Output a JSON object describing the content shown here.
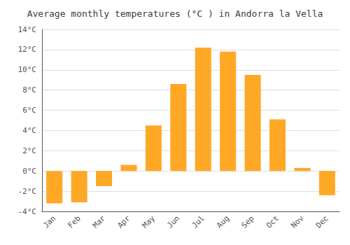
{
  "chart_data": {
    "type": "bar",
    "title": "Average monthly temperatures (°C ) in Andorra la Vella",
    "categories": [
      "Jan",
      "Feb",
      "Mar",
      "Apr",
      "May",
      "Jun",
      "Jul",
      "Aug",
      "Sep",
      "Oct",
      "Nov",
      "Dec"
    ],
    "values": [
      -3.2,
      -3.1,
      -1.5,
      0.6,
      4.5,
      8.6,
      12.2,
      11.8,
      9.5,
      5.1,
      0.3,
      -2.4
    ],
    "color": "#FFA826",
    "ylim": [
      -4,
      14
    ],
    "yticks": [
      {
        "value": -4,
        "label": "-4°C"
      },
      {
        "value": -2,
        "label": "-2°C"
      },
      {
        "value": 0,
        "label": "0°C"
      },
      {
        "value": 2,
        "label": "2°C"
      },
      {
        "value": 4,
        "label": "4°C"
      },
      {
        "value": 6,
        "label": "6°C"
      },
      {
        "value": 8,
        "label": "8°C"
      },
      {
        "value": 10,
        "label": "10°C"
      },
      {
        "value": 12,
        "label": "12°C"
      },
      {
        "value": 14,
        "label": "14°C"
      }
    ],
    "grid": true
  }
}
